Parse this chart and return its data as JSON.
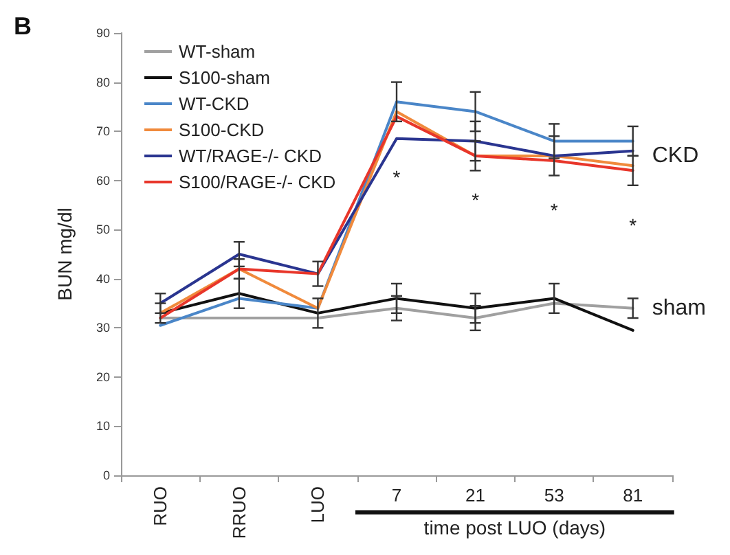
{
  "chart_data": {
    "type": "line",
    "xlabel": "time post LUO (days)",
    "ylabel": "BUN mg/dl",
    "categories": [
      "RUO",
      "RRUO",
      "LUO",
      "7",
      "21",
      "53",
      "81"
    ],
    "series": [
      {
        "name": "WT-sham",
        "color": "#a0a0a0",
        "values": [
          32,
          32,
          32,
          34,
          32,
          35,
          34
        ],
        "errors": [
          null,
          null,
          null,
          2.5,
          2.5,
          null,
          2
        ]
      },
      {
        "name": "S100-sham",
        "color": "#111111",
        "values": [
          33,
          37,
          33,
          36,
          34,
          36,
          29.5
        ],
        "errors": [
          2,
          3,
          3,
          3,
          3,
          3,
          null
        ]
      },
      {
        "name": "WT-CKD",
        "color": "#4a86c8",
        "values": [
          30.5,
          36,
          34,
          76,
          74,
          68,
          68
        ],
        "errors": [
          null,
          null,
          null,
          4,
          4,
          3.5,
          3
        ]
      },
      {
        "name": "S100-CKD",
        "color": "#f08a3c",
        "values": [
          33,
          42,
          34,
          74,
          65,
          65,
          63
        ],
        "errors": [
          null,
          2,
          null,
          null,
          null,
          null,
          null
        ]
      },
      {
        "name": "WT/RAGE-/- CKD",
        "color": "#2a3590",
        "values": [
          35,
          45,
          41,
          68.5,
          68,
          65,
          66
        ],
        "errors": [
          2,
          2.5,
          2.5,
          null,
          4,
          4,
          null
        ]
      },
      {
        "name": "S100/RAGE-/- CKD",
        "color": "#e8362a",
        "values": [
          32,
          42,
          41,
          73,
          65,
          64,
          62
        ],
        "errors": [
          null,
          null,
          null,
          null,
          3,
          null,
          3
        ]
      }
    ],
    "ylim": [
      0,
      90
    ],
    "yticks": [
      0,
      10,
      20,
      30,
      40,
      50,
      60,
      70,
      80,
      90
    ],
    "grid": false,
    "legend": "top left",
    "marker": "none",
    "line_style": "solid",
    "annotations": [
      "B",
      {
        "text": "CKD",
        "x": "81",
        "y": 65
      },
      {
        "text": "sham",
        "x": "81",
        "y": 34
      },
      "*",
      "*",
      "*",
      "*"
    ]
  }
}
